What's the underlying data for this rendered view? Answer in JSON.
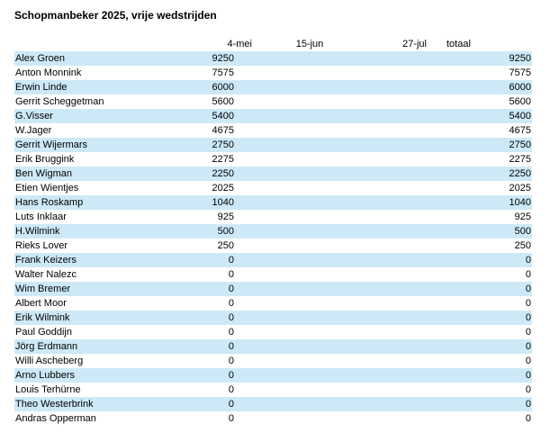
{
  "title": "Schopmanbeker 2025, vrije wedstrijden",
  "columns": {
    "d1": "4-mei",
    "d2": "15-jun",
    "d3": "27-jul",
    "totaal": "totaal"
  },
  "rows": [
    {
      "name": "Alex Groen",
      "d1": "9250",
      "d2": "",
      "d3": "",
      "totaal": "9250"
    },
    {
      "name": "Anton Monnink",
      "d1": "7575",
      "d2": "",
      "d3": "",
      "totaal": "7575"
    },
    {
      "name": "Erwin Linde",
      "d1": "6000",
      "d2": "",
      "d3": "",
      "totaal": "6000"
    },
    {
      "name": "Gerrit Scheggetman",
      "d1": "5600",
      "d2": "",
      "d3": "",
      "totaal": "5600"
    },
    {
      "name": "G.Visser",
      "d1": "5400",
      "d2": "",
      "d3": "",
      "totaal": "5400"
    },
    {
      "name": "W.Jager",
      "d1": "4675",
      "d2": "",
      "d3": "",
      "totaal": "4675"
    },
    {
      "name": "Gerrit Wijermars",
      "d1": "2750",
      "d2": "",
      "d3": "",
      "totaal": "2750"
    },
    {
      "name": "Erik Bruggink",
      "d1": "2275",
      "d2": "",
      "d3": "",
      "totaal": "2275"
    },
    {
      "name": "Ben Wigman",
      "d1": "2250",
      "d2": "",
      "d3": "",
      "totaal": "2250"
    },
    {
      "name": "Etien Wientjes",
      "d1": "2025",
      "d2": "",
      "d3": "",
      "totaal": "2025"
    },
    {
      "name": "Hans Roskamp",
      "d1": "1040",
      "d2": "",
      "d3": "",
      "totaal": "1040"
    },
    {
      "name": "Luts Inklaar",
      "d1": "925",
      "d2": "",
      "d3": "",
      "totaal": "925"
    },
    {
      "name": "H.Wilmink",
      "d1": "500",
      "d2": "",
      "d3": "",
      "totaal": "500"
    },
    {
      "name": "Rieks Lover",
      "d1": "250",
      "d2": "",
      "d3": "",
      "totaal": "250"
    },
    {
      "name": "Frank Keizers",
      "d1": "0",
      "d2": "",
      "d3": "",
      "totaal": "0"
    },
    {
      "name": "Walter Nalezc",
      "d1": "0",
      "d2": "",
      "d3": "",
      "totaal": "0"
    },
    {
      "name": "Wim Bremer",
      "d1": "0",
      "d2": "",
      "d3": "",
      "totaal": "0"
    },
    {
      "name": "Albert Moor",
      "d1": "0",
      "d2": "",
      "d3": "",
      "totaal": "0"
    },
    {
      "name": "Erik Wilmink",
      "d1": "0",
      "d2": "",
      "d3": "",
      "totaal": "0"
    },
    {
      "name": "Paul Goddijn",
      "d1": "0",
      "d2": "",
      "d3": "",
      "totaal": "0"
    },
    {
      "name": "Jörg Erdmann",
      "d1": "0",
      "d2": "",
      "d3": "",
      "totaal": "0"
    },
    {
      "name": "Willi Ascheberg",
      "d1": "0",
      "d2": "",
      "d3": "",
      "totaal": "0"
    },
    {
      "name": "Arno Lubbers",
      "d1": "0",
      "d2": "",
      "d3": "",
      "totaal": "0"
    },
    {
      "name": "Louis Terhürne",
      "d1": "0",
      "d2": "",
      "d3": "",
      "totaal": "0"
    },
    {
      "name": "Theo Westerbrink",
      "d1": "0",
      "d2": "",
      "d3": "",
      "totaal": "0"
    },
    {
      "name": "Andras Opperman",
      "d1": "0",
      "d2": "",
      "d3": "",
      "totaal": "0"
    }
  ],
  "colors": {
    "alt_row": "#cde9f8",
    "text": "#000000",
    "background": "#ffffff"
  }
}
